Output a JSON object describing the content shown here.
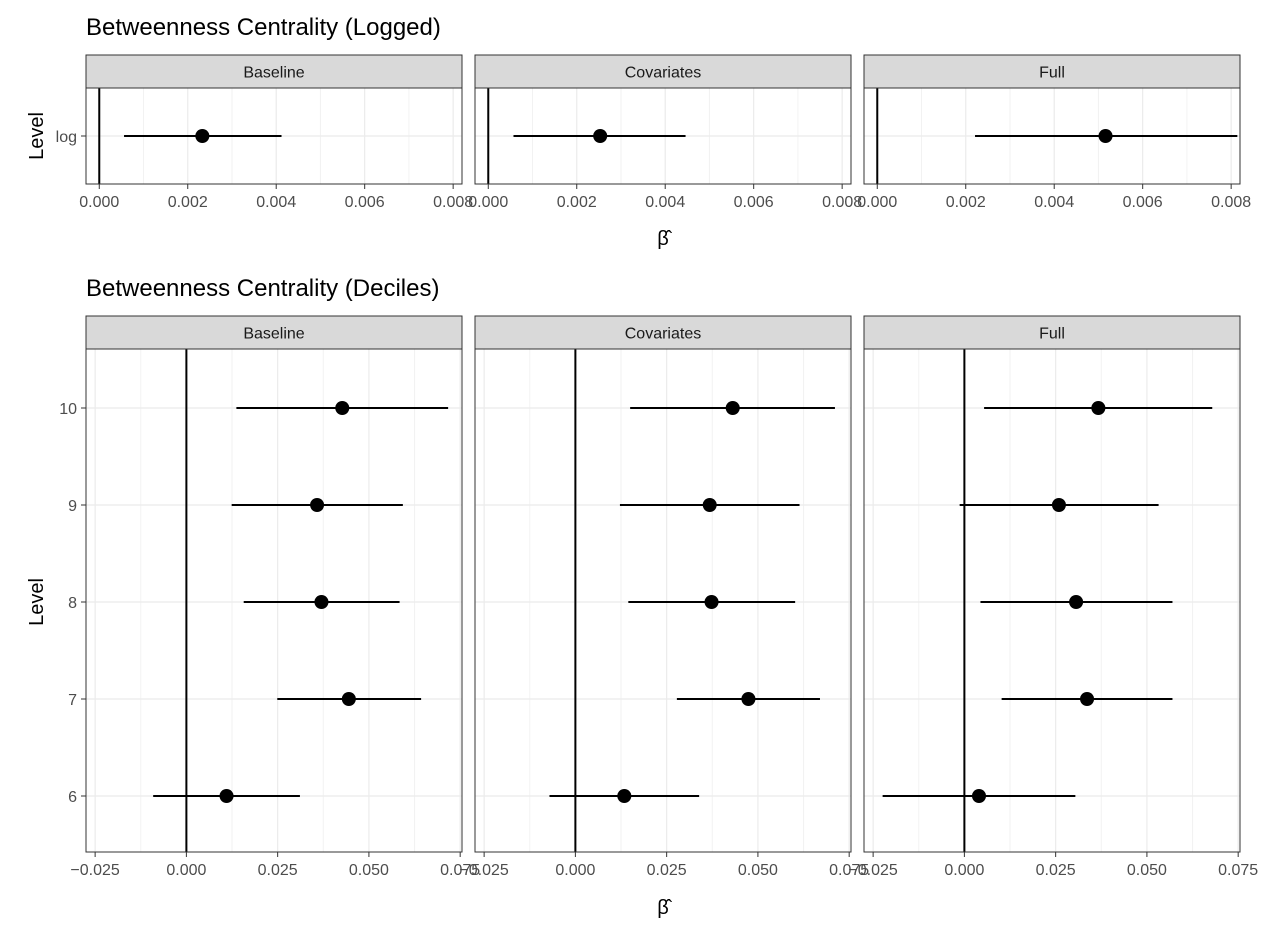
{
  "chart_data": [
    {
      "type": "forest",
      "title": "Betweenness Centrality (Logged)",
      "xlabel": "β̂",
      "ylabel": "Level",
      "xlim": [
        -0.0003,
        0.0082
      ],
      "x_ticks": [
        "0.000",
        "0.002",
        "0.004",
        "0.006",
        "0.008"
      ],
      "x_tick_values": [
        0,
        0.002,
        0.004,
        0.006,
        0.008
      ],
      "levels": [
        "log"
      ],
      "reference_line": 0,
      "panels": [
        {
          "name": "Baseline",
          "points": [
            {
              "level": "log",
              "estimate": 0.00233,
              "lower": 0.00056,
              "upper": 0.00412
            }
          ]
        },
        {
          "name": "Covariates",
          "points": [
            {
              "level": "log",
              "estimate": 0.00253,
              "lower": 0.00057,
              "upper": 0.00446
            }
          ]
        },
        {
          "name": "Full",
          "points": [
            {
              "level": "log",
              "estimate": 0.00516,
              "lower": 0.00221,
              "upper": 0.00814
            }
          ]
        }
      ]
    },
    {
      "type": "forest",
      "title": "Betweenness Centrality (Deciles)",
      "xlabel": "β̂",
      "ylabel": "Level",
      "xlim": [
        -0.0275,
        0.0755
      ],
      "x_ticks": [
        "−0.025",
        "0.000",
        "0.025",
        "0.050",
        "0.075"
      ],
      "x_tick_values": [
        -0.025,
        0,
        0.025,
        0.05,
        0.075
      ],
      "levels": [
        "6",
        "7",
        "8",
        "9",
        "10"
      ],
      "reference_line": 0,
      "panels": [
        {
          "name": "Baseline",
          "points": [
            {
              "level": "10",
              "estimate": 0.0427,
              "lower": 0.0137,
              "upper": 0.0717
            },
            {
              "level": "9",
              "estimate": 0.0358,
              "lower": 0.0124,
              "upper": 0.0593
            },
            {
              "level": "8",
              "estimate": 0.037,
              "lower": 0.0157,
              "upper": 0.0584
            },
            {
              "level": "7",
              "estimate": 0.0445,
              "lower": 0.0249,
              "upper": 0.0643
            },
            {
              "level": "6",
              "estimate": 0.011,
              "lower": -0.0091,
              "upper": 0.0311
            }
          ]
        },
        {
          "name": "Covariates",
          "points": [
            {
              "level": "10",
              "estimate": 0.0431,
              "lower": 0.015,
              "upper": 0.0711
            },
            {
              "level": "9",
              "estimate": 0.0368,
              "lower": 0.0122,
              "upper": 0.0614
            },
            {
              "level": "8",
              "estimate": 0.0373,
              "lower": 0.0145,
              "upper": 0.0602
            },
            {
              "level": "7",
              "estimate": 0.0474,
              "lower": 0.0278,
              "upper": 0.067
            },
            {
              "level": "6",
              "estimate": 0.0134,
              "lower": -0.0071,
              "upper": 0.0339
            }
          ]
        },
        {
          "name": "Full",
          "points": [
            {
              "level": "10",
              "estimate": 0.0367,
              "lower": 0.0054,
              "upper": 0.0679
            },
            {
              "level": "9",
              "estimate": 0.0259,
              "lower": -0.0013,
              "upper": 0.0532
            },
            {
              "level": "8",
              "estimate": 0.0306,
              "lower": 0.0044,
              "upper": 0.057
            },
            {
              "level": "7",
              "estimate": 0.0336,
              "lower": 0.0102,
              "upper": 0.057
            },
            {
              "level": "6",
              "estimate": 0.004,
              "lower": -0.0224,
              "upper": 0.0304
            }
          ]
        }
      ]
    }
  ],
  "colors": {
    "strip_fill": "#d9d9d9",
    "strip_border": "#333333",
    "panel_border": "#333333",
    "grid_major": "#ebebeb",
    "grid_minor": "#f2f2f2",
    "marks": "#000000"
  }
}
